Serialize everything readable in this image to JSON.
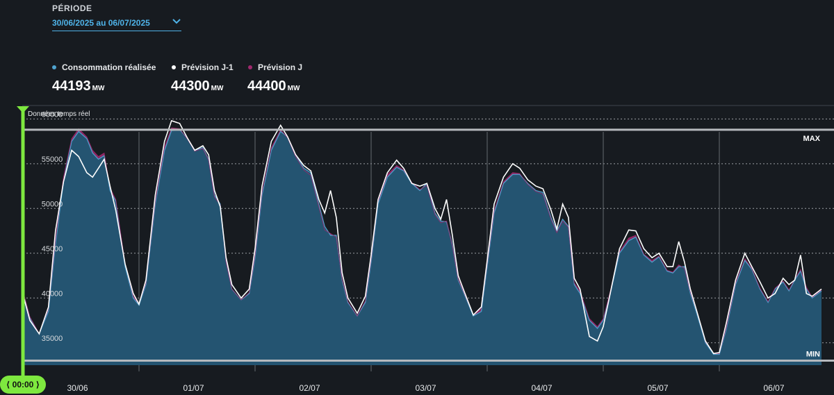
{
  "period": {
    "label": "PÉRIODE",
    "value": "30/06/2025 au 06/07/2025"
  },
  "legend": {
    "unit": "MW",
    "items": [
      {
        "label": "Consommation réalisée",
        "value": "44193",
        "color": "#4fa3cf"
      },
      {
        "label": "Prévision J-1",
        "value": "44300",
        "color": "#ffffff"
      },
      {
        "label": "Prévision J",
        "value": "44400",
        "color": "#a0296e"
      }
    ]
  },
  "cursor": {
    "label": "⟨ 00:00 ⟩"
  },
  "chart_data": {
    "type": "area",
    "subtitle": "Données temps réel",
    "ylim": [
      32500,
      61500
    ],
    "y_ticks": [
      "60000",
      "55000",
      "50000",
      "45000",
      "40000",
      "35000"
    ],
    "x_ticks": [
      "30/06",
      "01/07",
      "02/07",
      "03/07",
      "04/07",
      "05/07",
      "06/07"
    ],
    "grid": true,
    "reference_lines": [
      {
        "label": "MAX",
        "value": 58800
      },
      {
        "label": "MIN",
        "value": 33000
      }
    ],
    "x_days": [
      0,
      0.06,
      0.14,
      0.22,
      0.28,
      0.35,
      0.42,
      0.48,
      0.55,
      0.6,
      0.65,
      0.7,
      0.75,
      0.8,
      0.88,
      0.95,
      1.0,
      1.06,
      1.14,
      1.22,
      1.28,
      1.35,
      1.42,
      1.48,
      1.55,
      1.6,
      1.65,
      1.7,
      1.75,
      1.8,
      1.88,
      1.95,
      2.0,
      2.06,
      2.14,
      2.22,
      2.28,
      2.35,
      2.42,
      2.48,
      2.55,
      2.6,
      2.65,
      2.7,
      2.75,
      2.8,
      2.88,
      2.95,
      3.0,
      3.06,
      3.14,
      3.22,
      3.28,
      3.35,
      3.42,
      3.48,
      3.55,
      3.6,
      3.65,
      3.7,
      3.75,
      3.8,
      3.88,
      3.95,
      4.0,
      4.06,
      4.14,
      4.22,
      4.28,
      4.35,
      4.42,
      4.48,
      4.55,
      4.6,
      4.65,
      4.7,
      4.75,
      4.8,
      4.88,
      4.95,
      5.0,
      5.06,
      5.14,
      5.22,
      5.28,
      5.35,
      5.42,
      5.48,
      5.55,
      5.6,
      5.65,
      5.7,
      5.75,
      5.8,
      5.88,
      5.95,
      6.0,
      6.06,
      6.14,
      6.22,
      6.28,
      6.35,
      6.42,
      6.48,
      6.55,
      6.6,
      6.65,
      6.7,
      6.75,
      6.8,
      6.88
    ],
    "series": [
      {
        "name": "Consommation réalisée",
        "color": "#4fa3cf",
        "values": [
          40600,
          37800,
          36000,
          38500,
          46000,
          53000,
          57500,
          58600,
          57800,
          56200,
          55500,
          55900,
          52000,
          50800,
          43500,
          40000,
          39200,
          41500,
          50500,
          56500,
          58700,
          58800,
          57800,
          56500,
          56800,
          55500,
          51500,
          50500,
          44200,
          41000,
          39800,
          40500,
          44500,
          51500,
          56500,
          58600,
          58000,
          56000,
          54500,
          54000,
          50500,
          48000,
          47000,
          47000,
          42000,
          39500,
          38000,
          39500,
          44000,
          50500,
          53500,
          54600,
          54200,
          52800,
          52000,
          52800,
          49500,
          48600,
          48500,
          46000,
          42000,
          40500,
          38000,
          38500,
          43500,
          49500,
          52800,
          53800,
          53800,
          52800,
          52000,
          51800,
          49000,
          47500,
          48800,
          48000,
          41500,
          40500,
          37500,
          36600,
          37500,
          40500,
          45000,
          46400,
          46800,
          44800,
          44000,
          44600,
          43000,
          42800,
          43500,
          43500,
          40500,
          38500,
          35000,
          33700,
          33700,
          36500,
          41500,
          44200,
          43200,
          41000,
          39500,
          41000,
          41800,
          40800,
          42000,
          43000,
          41000,
          40000,
          40800
        ]
      },
      {
        "name": "Prévision J-1",
        "color": "#ffffff",
        "values": [
          40400,
          37500,
          36000,
          39000,
          47500,
          53000,
          56500,
          55800,
          54000,
          53500,
          54500,
          55500,
          52500,
          49800,
          43800,
          40500,
          39300,
          42000,
          51500,
          57500,
          59800,
          59500,
          57800,
          56500,
          57000,
          56000,
          52000,
          50200,
          44500,
          41500,
          40000,
          41000,
          45500,
          52500,
          57500,
          59300,
          58000,
          56000,
          54800,
          54200,
          51000,
          49500,
          52000,
          49000,
          42800,
          40000,
          38300,
          40200,
          44800,
          51000,
          54000,
          55400,
          54500,
          52800,
          52500,
          52800,
          50000,
          48800,
          51000,
          47000,
          42500,
          40800,
          38100,
          39000,
          44200,
          50500,
          53500,
          55000,
          54500,
          53200,
          52500,
          52200,
          49800,
          47700,
          50500,
          49000,
          42200,
          41000,
          35700,
          35200,
          36800,
          40500,
          45500,
          47600,
          47500,
          45500,
          44500,
          45000,
          43500,
          43500,
          46300,
          44000,
          41000,
          38800,
          35200,
          33800,
          33900,
          37200,
          42000,
          45000,
          43500,
          41800,
          40000,
          40500,
          42200,
          41500,
          42000,
          44800,
          40500,
          40200,
          41000
        ]
      },
      {
        "name": "Prévision J",
        "color": "#a0296e",
        "values": [
          40800,
          37900,
          36000,
          38800,
          46500,
          53500,
          57800,
          58900,
          58000,
          56500,
          55800,
          56200,
          52300,
          51000,
          43800,
          40200,
          39300,
          41700,
          50800,
          56900,
          59000,
          58900,
          57700,
          56400,
          56700,
          55400,
          51300,
          50400,
          44000,
          41000,
          39800,
          40600,
          44800,
          51800,
          56800,
          58800,
          57900,
          55800,
          54300,
          53700,
          50200,
          47600,
          47200,
          46800,
          42100,
          39600,
          38000,
          39700,
          44300,
          50800,
          53800,
          54800,
          54300,
          52900,
          52100,
          52600,
          49300,
          48400,
          48600,
          45800,
          42100,
          40600,
          38100,
          38800,
          43800,
          49800,
          53000,
          54000,
          53900,
          52700,
          51900,
          51600,
          48800,
          47300,
          48600,
          47900,
          41700,
          40800,
          37700,
          36800,
          37700,
          40700,
          45200,
          46700,
          47000,
          44900,
          44200,
          44700,
          43100,
          42900,
          43700,
          43300,
          40700,
          38700,
          35100,
          33800,
          33800,
          36700,
          41700,
          44400,
          43300,
          41100,
          39600,
          41100,
          41900,
          40900,
          42100,
          43200,
          41200,
          40100,
          40900
        ]
      }
    ]
  }
}
